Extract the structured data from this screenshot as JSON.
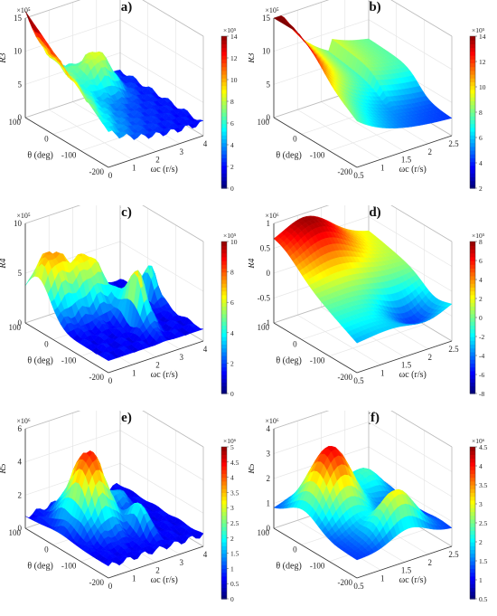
{
  "colormap": [
    "#00007f",
    "#0000ff",
    "#007fff",
    "#00ffff",
    "#7fff7f",
    "#ffff00",
    "#ff7f00",
    "#ff0000",
    "#7f0000"
  ],
  "chart_data": [
    {
      "type": "surface",
      "panel_label": "(a)",
      "zlabel": "R3",
      "z_sub": "3",
      "xlabel": "ωc (r/s)",
      "ylabel": "θ (deg)",
      "z_exponent": "×10⁵",
      "xlim": [
        0,
        4
      ],
      "xticks": [
        "0",
        "1",
        "2",
        "3",
        "4"
      ],
      "ylim": [
        -200,
        100
      ],
      "yticks": [
        "-200",
        "-100",
        "0",
        "100"
      ],
      "zlim": [
        0,
        15
      ],
      "zticks": [
        "0",
        "5",
        "10",
        "15"
      ],
      "colorbar": {
        "range": [
          0,
          14
        ],
        "ticks": [
          "0",
          "2",
          "4",
          "6",
          "8",
          "10",
          "12",
          "14"
        ],
        "exponent": "×10⁵"
      },
      "shape": "decay"
    },
    {
      "type": "surface",
      "panel_label": "(b)",
      "zlabel": "R3",
      "z_sub": "3",
      "xlabel": "ωc (r/s)",
      "ylabel": "θ (deg)",
      "z_exponent": "×10⁵",
      "xlim": [
        0.5,
        2.5
      ],
      "xticks": [
        "0.5",
        "1",
        "1.5",
        "2",
        "2.5"
      ],
      "ylim": [
        -200,
        100
      ],
      "yticks": [
        "-200",
        "-100",
        "0",
        "100"
      ],
      "zlim": [
        0,
        15
      ],
      "zticks": [
        "0",
        "5",
        "10",
        "15"
      ],
      "colorbar": {
        "range": [
          2,
          14
        ],
        "ticks": [
          "2",
          "4",
          "6",
          "8",
          "10",
          "12",
          "14"
        ],
        "exponent": "×10⁵"
      },
      "shape": "decay-smooth"
    },
    {
      "type": "surface",
      "panel_label": "(c)",
      "zlabel": "R4",
      "z_sub": "4",
      "xlabel": "ωc (r/s)",
      "ylabel": "θ (deg)",
      "z_exponent": "×10⁵",
      "xlim": [
        0,
        4
      ],
      "xticks": [
        "0",
        "1",
        "2",
        "3",
        "4"
      ],
      "ylim": [
        -200,
        100
      ],
      "yticks": [
        "-200",
        "-100",
        "0",
        "100"
      ],
      "zlim": [
        0,
        10
      ],
      "zticks": [
        "0",
        "5",
        "10"
      ],
      "colorbar": {
        "range": [
          0,
          10
        ],
        "ticks": [
          "0",
          "2",
          "4",
          "6",
          "8",
          "10"
        ],
        "exponent": "×10⁵"
      },
      "shape": "bumps"
    },
    {
      "type": "surface",
      "panel_label": "(d)",
      "zlabel": "R4",
      "z_sub": "4",
      "xlabel": "ωc (r/s)",
      "ylabel": "θ (deg)",
      "z_exponent": "×10⁶",
      "xlim": [
        0.5,
        2.5
      ],
      "xticks": [
        "0.5",
        "1",
        "1.5",
        "2",
        "2.5"
      ],
      "ylim": [
        -200,
        100
      ],
      "yticks": [
        "-200",
        "-100",
        "0",
        "100"
      ],
      "zlim": [
        -1,
        1
      ],
      "zticks": [
        "-1",
        "-0.5",
        "0",
        "0.5",
        "1"
      ],
      "colorbar": {
        "range": [
          -8,
          8
        ],
        "ticks": [
          "-8",
          "-6",
          "-4",
          "-2",
          "0",
          "2",
          "4",
          "6",
          "8"
        ],
        "exponent": "×10⁵"
      },
      "shape": "saddle"
    },
    {
      "type": "surface",
      "panel_label": "(e)",
      "zlabel": "R5",
      "z_sub": "5",
      "xlabel": "ωc (r/s)",
      "ylabel": "θ (deg)",
      "z_exponent": "×10⁶",
      "xlim": [
        0,
        4
      ],
      "xticks": [
        "0",
        "1",
        "2",
        "3",
        "4"
      ],
      "ylim": [
        -200,
        100
      ],
      "yticks": [
        "-200",
        "-100",
        "0",
        "100"
      ],
      "zlim": [
        0,
        6
      ],
      "zticks": [
        "0",
        "2",
        "4",
        "6"
      ],
      "colorbar": {
        "range": [
          0,
          5
        ],
        "ticks": [
          "0",
          "0.5",
          "1",
          "1.5",
          "2",
          "2.5",
          "3",
          "3.5",
          "4",
          "4.5",
          "5"
        ],
        "exponent": "×10⁶"
      },
      "shape": "peak"
    },
    {
      "type": "surface",
      "panel_label": "(f)",
      "zlabel": "R5",
      "z_sub": "5",
      "xlabel": "ωc (r/s)",
      "ylabel": "θ (deg)",
      "z_exponent": "×10⁶",
      "xlim": [
        0.5,
        2.5
      ],
      "xticks": [
        "0.5",
        "1",
        "1.5",
        "2",
        "2.5"
      ],
      "ylim": [
        -200,
        100
      ],
      "yticks": [
        "-200",
        "-100",
        "0",
        "100"
      ],
      "zlim": [
        0,
        4
      ],
      "zticks": [
        "0",
        "1",
        "2",
        "3",
        "4"
      ],
      "colorbar": {
        "range": [
          0.5,
          4.5
        ],
        "ticks": [
          "0.5",
          "1",
          "1.5",
          "2",
          "2.5",
          "3",
          "3.5",
          "4",
          "4.5"
        ],
        "exponent": "×10⁶"
      },
      "shape": "peak-smooth"
    }
  ]
}
